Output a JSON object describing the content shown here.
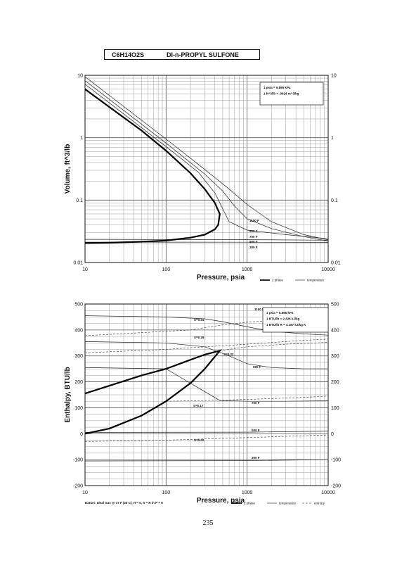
{
  "header": {
    "formula": "C6H14O2S",
    "name": "DI-n-PROPYL SULFONE"
  },
  "page_number": "235",
  "chart_data": [
    {
      "type": "line",
      "xlabel": "Pressure,  psia",
      "ylabel": "Volume, ft^3/lb",
      "x_scale": "log",
      "y_scale": "log",
      "xlim": [
        10,
        10000
      ],
      "ylim": [
        0.01,
        10
      ],
      "x_ticks": [
        "10",
        "100",
        "1000",
        "10000"
      ],
      "y_ticks_left": [
        "10",
        "1",
        "0.1",
        "0.01"
      ],
      "y_ticks_right": [
        "10",
        "1",
        "0.1",
        "0.01"
      ],
      "grid": true,
      "conversion_notes": [
        "1 psia  =  6.895 kPa",
        "1 ft^3/lb  =  .0624 m^3/kg"
      ],
      "isotherm_labels": [
        "1100 F",
        "900 F",
        "700 F",
        "500 F",
        "300 F"
      ],
      "legend": [
        {
          "label": "2 phase",
          "style": "thick"
        },
        {
          "label": "temperature",
          "style": "thin"
        }
      ],
      "dome": {
        "name": "2 phase",
        "vapor_x": [
          10,
          20,
          50,
          100,
          200,
          300,
          400,
          460
        ],
        "vapor_y": [
          6.0,
          3.1,
          1.3,
          0.62,
          0.27,
          0.15,
          0.09,
          0.06
        ],
        "liquid_x": [
          460,
          440,
          400,
          300,
          200,
          100,
          50,
          20,
          10
        ],
        "liquid_y": [
          0.06,
          0.04,
          0.034,
          0.028,
          0.025,
          0.0225,
          0.0215,
          0.0208,
          0.0205
        ]
      },
      "isotherms": [
        {
          "label": "1100 F",
          "x": [
            10,
            100,
            300,
            600,
            1000,
            2000,
            5000,
            10000
          ],
          "y": [
            9.5,
            0.95,
            0.31,
            0.15,
            0.085,
            0.045,
            0.028,
            0.023
          ]
        },
        {
          "label": "900 F",
          "x": [
            10,
            100,
            300,
            500,
            700,
            1000,
            2000,
            5000,
            10000
          ],
          "y": [
            8.2,
            0.82,
            0.26,
            0.14,
            0.08,
            0.05,
            0.035,
            0.026,
            0.022
          ]
        },
        {
          "label": "700 F",
          "x": [
            10,
            100,
            250,
            400,
            600,
            1000,
            3000,
            10000
          ],
          "y": [
            7.2,
            0.72,
            0.28,
            0.13,
            0.045,
            0.033,
            0.028,
            0.024
          ]
        },
        {
          "label": "500 F",
          "x": [
            10,
            1000,
            10000
          ],
          "y": [
            0.0235,
            0.0232,
            0.0228
          ]
        },
        {
          "label": "300 F",
          "x": [
            10,
            1000,
            10000
          ],
          "y": [
            0.0212,
            0.0211,
            0.0209
          ]
        }
      ]
    },
    {
      "type": "line",
      "xlabel": "Pressure,  psia",
      "ylabel": "Enthalpy, BTU/lb",
      "x_scale": "log",
      "xlim": [
        10,
        10000
      ],
      "ylim": [
        -200,
        500
      ],
      "x_ticks": [
        "10",
        "100",
        "1000",
        "10000"
      ],
      "y_ticks_left": [
        "500",
        "400",
        "300",
        "200",
        "100",
        "0",
        "-100",
        "-200"
      ],
      "y_ticks_right": [
        "500",
        "400",
        "300",
        "200",
        "100",
        "0",
        "-100",
        "-200"
      ],
      "grid": true,
      "conversion_notes": [
        "1 psia  =  6.895 kPa",
        "1 BTU/lb  =  2.326 kJ/kg",
        "1 BTU/lb R  =  4.187 kJ/kg K"
      ],
      "datum_note": "Datum: Ideal Gas @ 77 F (25 C),  H = 0,  S = R ln P = 0",
      "isotherm_labels": [
        "1100 F",
        "900 F",
        "700 F",
        "500 F",
        "300 F"
      ],
      "entropy_labels": [
        "S=0.41",
        "S=0.29",
        "S=0.32",
        "S=0.17",
        "S=0.02"
      ],
      "legend": [
        {
          "label": "2 phase",
          "style": "thick"
        },
        {
          "label": "temperature",
          "style": "thin"
        },
        {
          "label": "entropy",
          "style": "dashed"
        }
      ],
      "dome": {
        "name": "2 phase",
        "vapor_x": [
          10,
          20,
          50,
          100,
          200,
          300,
          460
        ],
        "vapor_y": [
          155,
          185,
          225,
          250,
          285,
          305,
          320
        ],
        "liquid_x": [
          460,
          300,
          200,
          100,
          50,
          20,
          10
        ],
        "liquid_y": [
          320,
          250,
          195,
          125,
          70,
          20,
          0
        ]
      },
      "isotherms": [
        {
          "label": "1100 F",
          "x": [
            10,
            100,
            300,
            500,
            1000,
            2000,
            5000,
            10000
          ],
          "y": [
            455,
            450,
            443,
            432,
            412,
            395,
            385,
            380
          ]
        },
        {
          "label": "900 F",
          "x": [
            10,
            100,
            300,
            600,
            1000,
            2000,
            5000,
            10000
          ],
          "y": [
            355,
            350,
            335,
            300,
            270,
            255,
            250,
            250
          ]
        },
        {
          "label": "700 F",
          "x": [
            10,
            100,
            460,
            1000,
            3000,
            10000
          ],
          "y": [
            255,
            250,
            128,
            125,
            125,
            127
          ]
        },
        {
          "label": "500 F",
          "x": [
            10,
            1000,
            10000
          ],
          "y": [
            5,
            6,
            10
          ]
        },
        {
          "label": "300 F",
          "x": [
            10,
            1000,
            10000
          ],
          "y": [
            -105,
            -104,
            -100
          ]
        }
      ],
      "entropy_lines": [
        {
          "label": "S=0.41",
          "x": [
            10,
            200,
            460,
            1000,
            5000,
            10000
          ],
          "y": [
            378,
            400,
            418,
            430,
            445,
            450
          ]
        },
        {
          "label": "S=0.29",
          "x": [
            10,
            100,
            300,
            1000,
            5000,
            10000
          ],
          "y": [
            312,
            325,
            335,
            345,
            360,
            365
          ]
        },
        {
          "label": "S=0.32",
          "x": [
            460,
            1000,
            3000,
            10000
          ],
          "y": [
            320,
            335,
            345,
            352
          ]
        },
        {
          "label": "S=0.17",
          "x": [
            100,
            300,
            1000,
            5000,
            10000
          ],
          "y": [
            125,
            128,
            132,
            140,
            145
          ]
        },
        {
          "label": "S=0.02",
          "x": [
            10,
            100,
            1000,
            10000
          ],
          "y": [
            -30,
            -25,
            -15,
            -5
          ]
        }
      ]
    }
  ]
}
